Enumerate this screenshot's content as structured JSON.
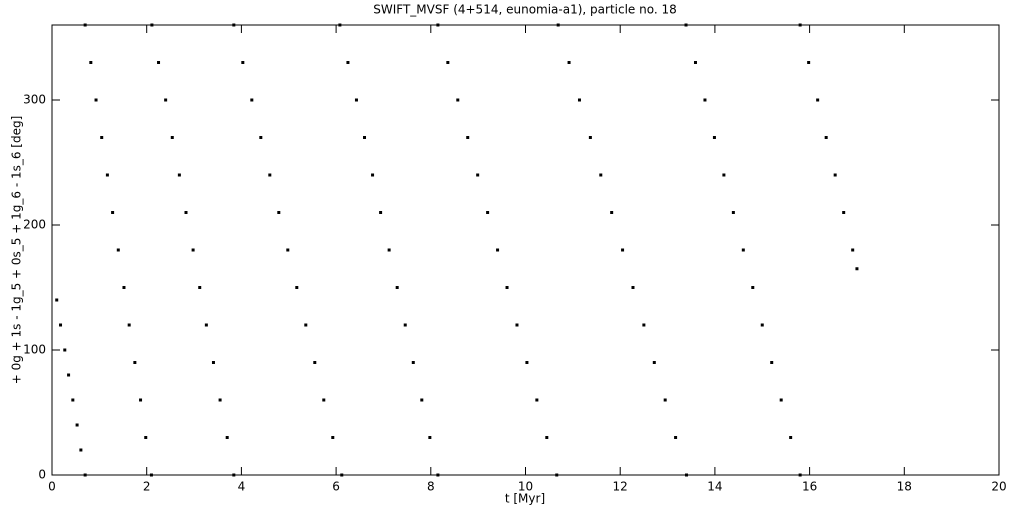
{
  "chart_data": {
    "type": "scatter",
    "title": "SWIFT_MVSF (4+514, eunomia-a1), particle no. 18",
    "x_label": "t [Myr]",
    "y_label": "+ 0g + 1s - 1g_5 + 0s_5 + 1g_6 - 1s_6 [deg]",
    "xlim": [
      0,
      20
    ],
    "ylim": [
      0,
      360
    ],
    "xticks": [
      0,
      2,
      4,
      6,
      8,
      10,
      12,
      14,
      16,
      18,
      20
    ],
    "yticks": [
      0,
      100,
      200,
      300
    ],
    "grid": false,
    "series": [
      {
        "color": "#000000",
        "x": [
          0.1,
          0.18,
          0.27,
          0.35,
          0.44,
          0.53,
          0.61,
          0.7,
          0.7,
          0.82,
          0.93,
          1.05,
          1.17,
          1.28,
          1.4,
          1.52,
          1.63,
          1.75,
          1.87,
          1.98,
          2.1,
          2.11,
          2.25,
          2.4,
          2.54,
          2.69,
          2.83,
          2.98,
          3.12,
          3.26,
          3.41,
          3.55,
          3.7,
          3.84,
          3.84,
          4.03,
          4.22,
          4.41,
          4.6,
          4.79,
          4.98,
          5.17,
          5.36,
          5.55,
          5.74,
          5.93,
          6.12,
          6.08,
          6.25,
          6.43,
          6.6,
          6.77,
          6.94,
          7.12,
          7.29,
          7.46,
          7.63,
          7.81,
          7.98,
          8.15,
          8.15,
          8.36,
          8.57,
          8.78,
          8.99,
          9.2,
          9.41,
          9.61,
          9.82,
          10.03,
          10.24,
          10.45,
          10.66,
          10.69,
          10.92,
          11.14,
          11.37,
          11.59,
          11.82,
          12.05,
          12.27,
          12.5,
          12.72,
          12.95,
          13.17,
          13.4,
          13.39,
          13.59,
          13.79,
          13.99,
          14.19,
          14.39,
          14.6,
          14.8,
          15.0,
          15.2,
          15.4,
          15.6,
          15.8,
          15.8,
          15.98,
          16.17,
          16.35,
          16.54,
          16.72,
          16.91,
          17.0
        ],
        "values": [
          140,
          120,
          100,
          80,
          60,
          40,
          20,
          0,
          360,
          330,
          300,
          270,
          240,
          210,
          180,
          150,
          120,
          90,
          60,
          30,
          0,
          360,
          330,
          300,
          270,
          240,
          210,
          180,
          150,
          120,
          90,
          60,
          30,
          0,
          360,
          330,
          300,
          270,
          240,
          210,
          180,
          150,
          120,
          90,
          60,
          30,
          0,
          360,
          330,
          300,
          270,
          240,
          210,
          180,
          150,
          120,
          90,
          60,
          30,
          0,
          360,
          330,
          300,
          270,
          240,
          210,
          180,
          150,
          120,
          90,
          60,
          30,
          0,
          360,
          330,
          300,
          270,
          240,
          210,
          180,
          150,
          120,
          90,
          60,
          30,
          0,
          360,
          330,
          300,
          270,
          240,
          210,
          180,
          150,
          120,
          90,
          60,
          30,
          0,
          360,
          330,
          300,
          270,
          240,
          210,
          180,
          165
        ]
      }
    ]
  }
}
